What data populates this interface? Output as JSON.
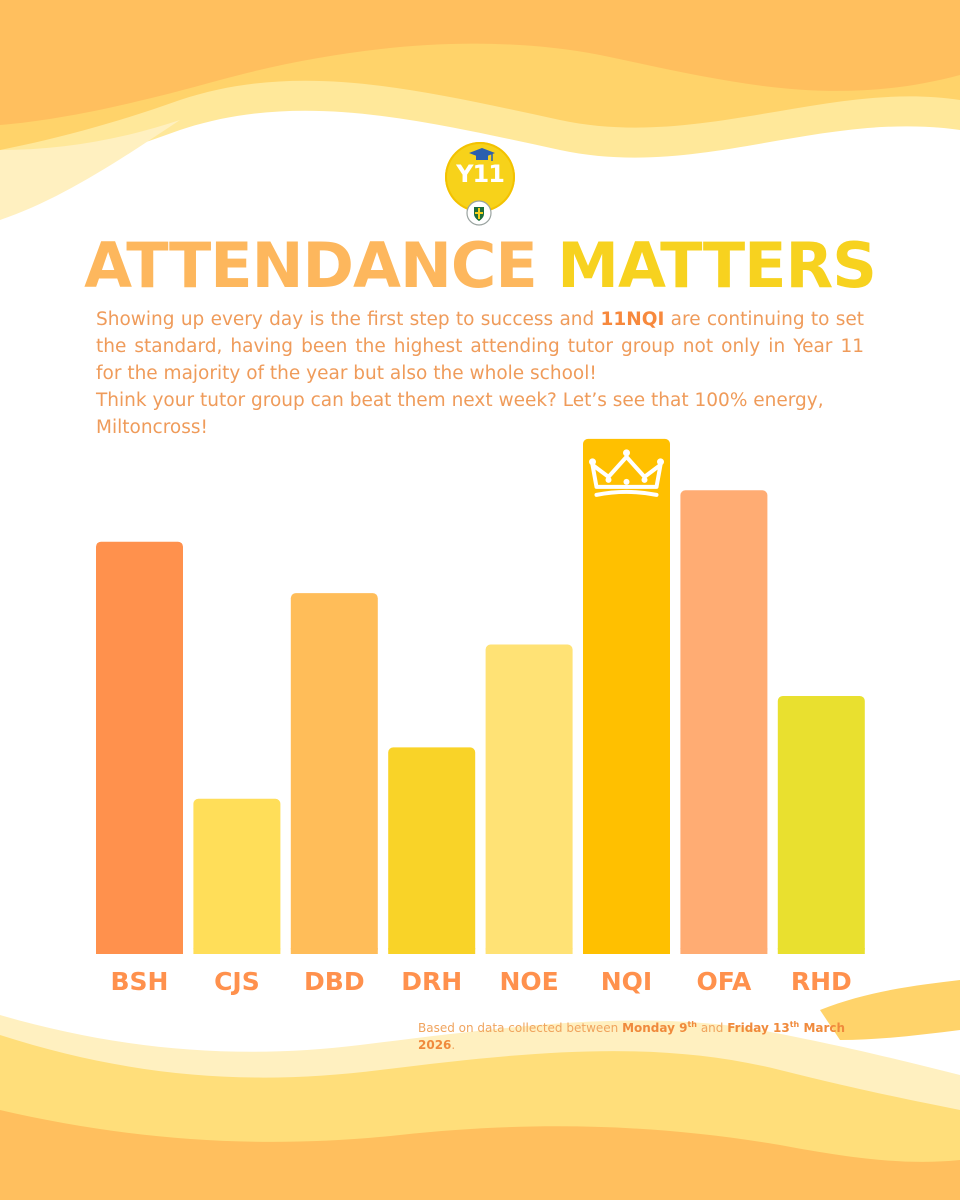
{
  "header": {
    "logo_text": "Y11",
    "title_part1": "ATTENDANCE",
    "title_part2": "MATTERS"
  },
  "intro": {
    "p1_before": "Showing up every day is the first step to success and ",
    "p1_highlight": "11NQI",
    "p1_after": " are continuing to set the standard, having been the highest attending tutor group not only in Year 11 for the majority of the year but also the whole school!",
    "p2": "Think your tutor group can beat them next week? Let’s see that 100% energy, Miltoncross!"
  },
  "footnote": {
    "before": "Based on data collected between ",
    "start_day": "Monday 9",
    "start_sup": "th",
    "between": " and ",
    "end_day": "Friday 13",
    "end_sup": "th",
    "end_month": "March 2026",
    "after": "."
  },
  "colors": {
    "orange": "#ff914d",
    "light_yellow": "#ffde59",
    "peach_orange": "#ffbd59",
    "yellow": "#f9d328",
    "pale_yellow": "#ffe275",
    "gold": "#ffc000",
    "salmon": "#ffac73",
    "lime_yellow": "#e9e02f"
  },
  "chart_data": {
    "type": "bar",
    "title": "",
    "xlabel": "",
    "ylabel": "",
    "categories": [
      "BSH",
      "CJS",
      "DBD",
      "DRH",
      "NOE",
      "NQI",
      "OFA",
      "RHD"
    ],
    "values": [
      417,
      157,
      365,
      209,
      313,
      521,
      469,
      261
    ],
    "ylim": [
      0,
      530
    ],
    "grid": false,
    "highlight": "NQI",
    "highlight_icon": "crown-icon",
    "bar_colors": [
      "#ff914d",
      "#ffde59",
      "#ffbd59",
      "#f9d328",
      "#ffe275",
      "#ffc000",
      "#ffac73",
      "#e9e02f"
    ],
    "label_color": "#ff914d"
  }
}
